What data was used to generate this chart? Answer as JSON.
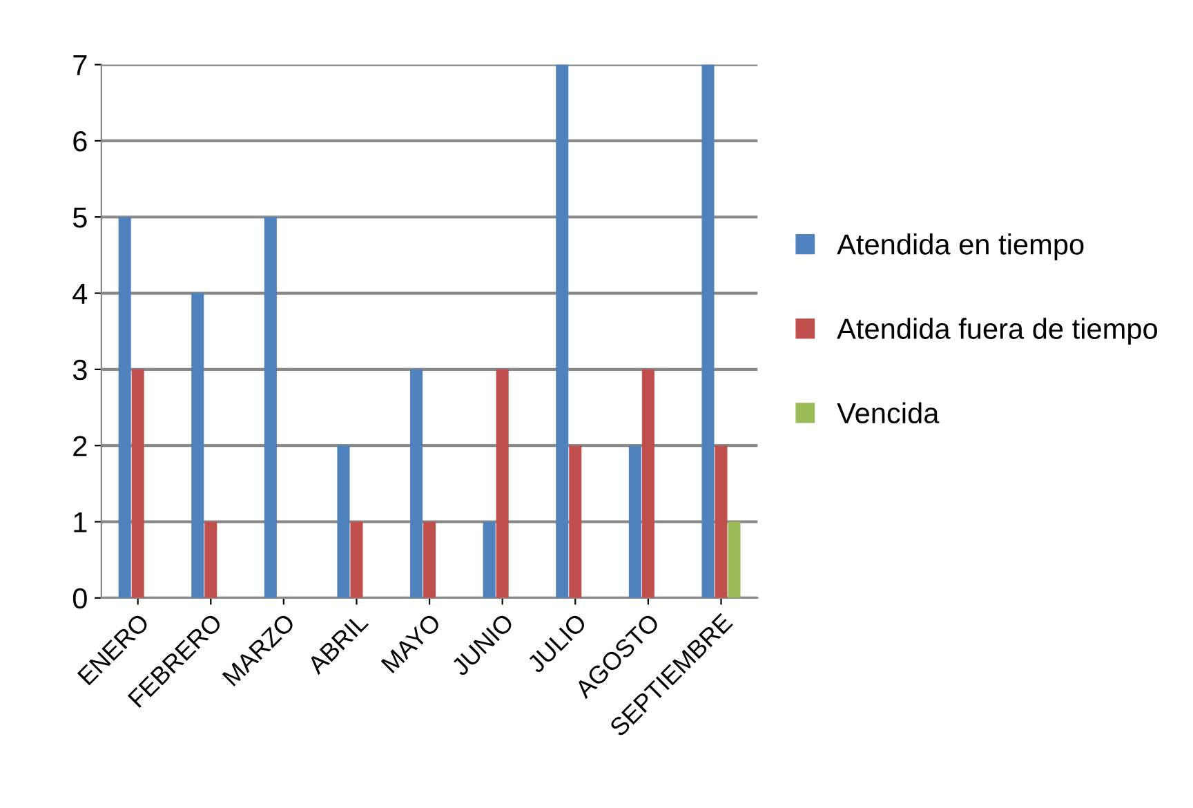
{
  "chart_data": {
    "type": "bar",
    "categories": [
      "ENERO",
      "FEBRERO",
      "MARZO",
      "ABRIL",
      "MAYO",
      "JUNIO",
      "JULIO",
      "AGOSTO",
      "SEPTIEMBRE"
    ],
    "series": [
      {
        "name": "Atendida en tiempo",
        "color": "#4f81bd",
        "values": [
          5,
          4,
          5,
          2,
          3,
          1,
          7,
          2,
          7
        ]
      },
      {
        "name": "Atendida fuera de tiempo",
        "color": "#c0504d",
        "values": [
          3,
          1,
          0,
          1,
          1,
          3,
          2,
          3,
          2
        ]
      },
      {
        "name": "Vencida",
        "color": "#9bbb59",
        "values": [
          0,
          0,
          0,
          0,
          0,
          0,
          0,
          0,
          1
        ]
      }
    ],
    "ylim": [
      0,
      7
    ],
    "yticks": [
      0,
      1,
      2,
      3,
      4,
      5,
      6,
      7
    ],
    "grid": "y",
    "legend": "right"
  }
}
